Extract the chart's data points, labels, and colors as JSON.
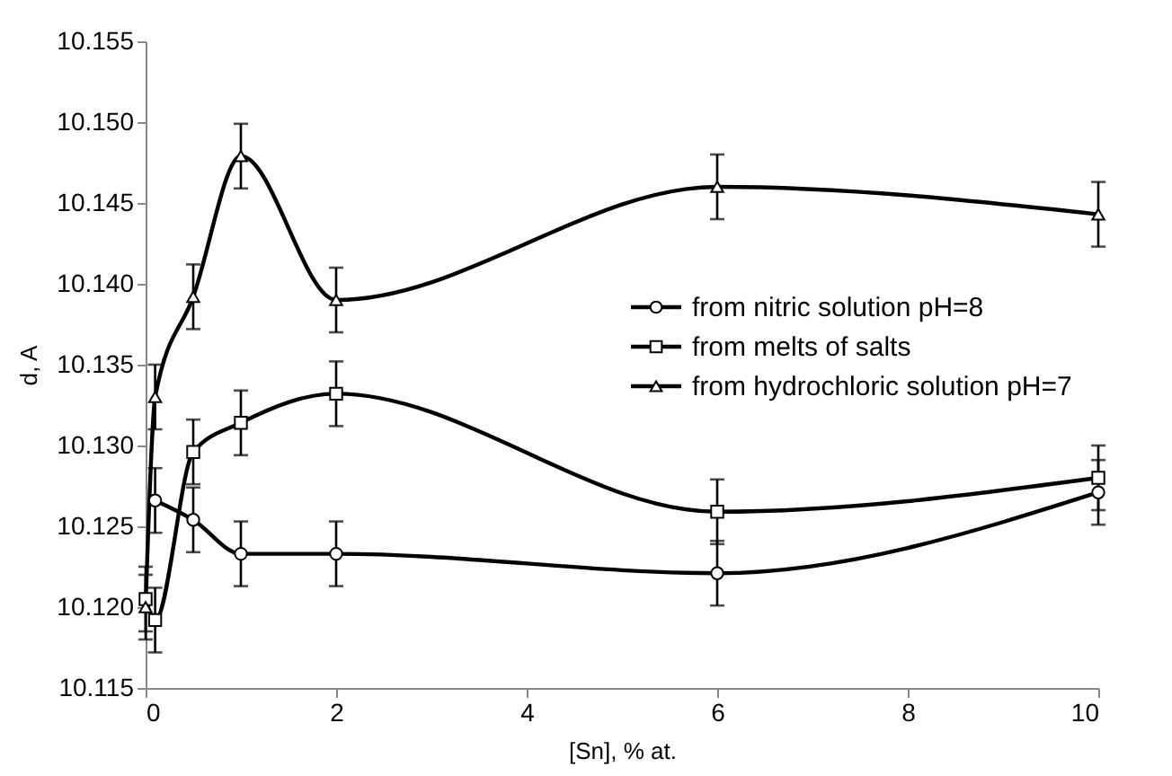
{
  "chart_data": {
    "type": "line",
    "xlabel": "[Sn], % at.",
    "ylabel": "d, A",
    "xlim": [
      0,
      10
    ],
    "xticks": [
      0,
      2,
      4,
      6,
      8,
      10
    ],
    "ylim": [
      10.115,
      10.155
    ],
    "yticks": [
      {
        "value": 10.115,
        "label": "10.115"
      },
      {
        "value": 10.12,
        "label": "10.120"
      },
      {
        "value": 10.125,
        "label": "10.125"
      },
      {
        "value": 10.13,
        "label": "10.130"
      },
      {
        "value": 10.135,
        "label": "10.135"
      },
      {
        "value": 10.14,
        "label": "10.140"
      },
      {
        "value": 10.145,
        "label": "10.145"
      },
      {
        "value": 10.15,
        "label": "10.150"
      },
      {
        "value": 10.155,
        "label": "10.155"
      }
    ],
    "grid": false,
    "legend": "right",
    "line_style": "solid",
    "series": [
      {
        "name": "from nitric solution pH=8",
        "color": "#000000",
        "marker": "circle",
        "x": [
          0.1,
          0.5,
          1,
          2,
          6,
          10
        ],
        "values": [
          10.1266,
          10.1254,
          10.1233,
          10.1233,
          10.1221,
          10.1271
        ],
        "errors": [
          0.002,
          0.002,
          0.002,
          0.002,
          0.002,
          0.002
        ]
      },
      {
        "name": "from melts of salts",
        "color": "#000000",
        "marker": "square",
        "x": [
          0,
          0.1,
          0.5,
          1,
          2,
          6,
          10
        ],
        "values": [
          10.1205,
          10.1192,
          10.1296,
          10.1314,
          10.1332,
          10.1259,
          10.128
        ],
        "errors": [
          0.002,
          0.002,
          0.002,
          0.002,
          0.002,
          0.002,
          0.002
        ]
      },
      {
        "name": "from hydrochloric solution pH=7",
        "color": "#000000",
        "marker": "triangle",
        "x": [
          0,
          0.1,
          0.5,
          1,
          2,
          6,
          10
        ],
        "values": [
          10.12,
          10.133,
          10.1392,
          10.1479,
          10.139,
          10.146,
          10.1443
        ],
        "errors": [
          0.002,
          0.002,
          0.002,
          0.002,
          0.002,
          0.002,
          0.002
        ]
      }
    ]
  }
}
